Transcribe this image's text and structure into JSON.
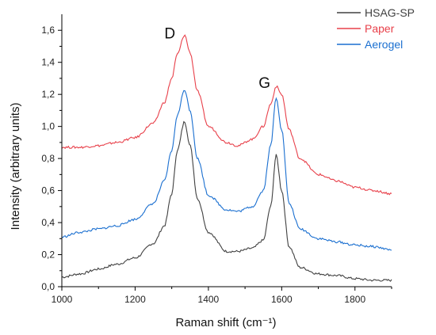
{
  "chart_data": {
    "type": "line",
    "xlabel": "Raman shift (cm⁻¹)",
    "ylabel": "Intensity (arbitrary units)",
    "xlim": [
      1000,
      1900
    ],
    "ylim": [
      0.0,
      1.7
    ],
    "xticks": [
      1000,
      1200,
      1400,
      1600,
      1800
    ],
    "xtick_labels": [
      "1000",
      "1200",
      "1400",
      "1600",
      "1800"
    ],
    "yticks": [
      0.0,
      0.2,
      0.4,
      0.6,
      0.8,
      1.0,
      1.2,
      1.4,
      1.6
    ],
    "ytick_labels": [
      "0,0",
      "0,2",
      "0,4",
      "0,6",
      "0,8",
      "1,0",
      "1,2",
      "1,4",
      "1,6"
    ],
    "grid": false,
    "legend_position": "top-right",
    "annotations": [
      {
        "text": "D",
        "x": 1280,
        "y": 1.55
      },
      {
        "text": "G",
        "x": 1537,
        "y": 1.24
      }
    ],
    "x": [
      1000,
      1050,
      1100,
      1150,
      1200,
      1250,
      1280,
      1300,
      1315,
      1335,
      1350,
      1370,
      1400,
      1450,
      1480,
      1520,
      1550,
      1570,
      1585,
      1600,
      1620,
      1650,
      1700,
      1750,
      1800,
      1850,
      1900
    ],
    "series": [
      {
        "name": "HSAG-SP",
        "color": "#404040",
        "values": [
          0.06,
          0.08,
          0.11,
          0.14,
          0.18,
          0.27,
          0.38,
          0.58,
          0.85,
          1.03,
          0.88,
          0.55,
          0.34,
          0.22,
          0.22,
          0.24,
          0.29,
          0.5,
          0.82,
          0.6,
          0.25,
          0.12,
          0.08,
          0.07,
          0.05,
          0.04,
          0.04
        ]
      },
      {
        "name": "Paper",
        "color": "#e8404a",
        "values": [
          0.87,
          0.87,
          0.88,
          0.9,
          0.93,
          1.02,
          1.15,
          1.3,
          1.45,
          1.57,
          1.46,
          1.22,
          1.0,
          0.9,
          0.88,
          0.92,
          1.0,
          1.14,
          1.25,
          1.2,
          0.98,
          0.8,
          0.7,
          0.66,
          0.62,
          0.6,
          0.58
        ]
      },
      {
        "name": "Aerogel",
        "color": "#1a6fd0",
        "values": [
          0.31,
          0.34,
          0.36,
          0.38,
          0.42,
          0.52,
          0.66,
          0.85,
          1.07,
          1.23,
          1.1,
          0.8,
          0.57,
          0.48,
          0.47,
          0.5,
          0.6,
          0.88,
          1.18,
          0.98,
          0.52,
          0.36,
          0.3,
          0.28,
          0.26,
          0.25,
          0.23
        ]
      }
    ]
  }
}
